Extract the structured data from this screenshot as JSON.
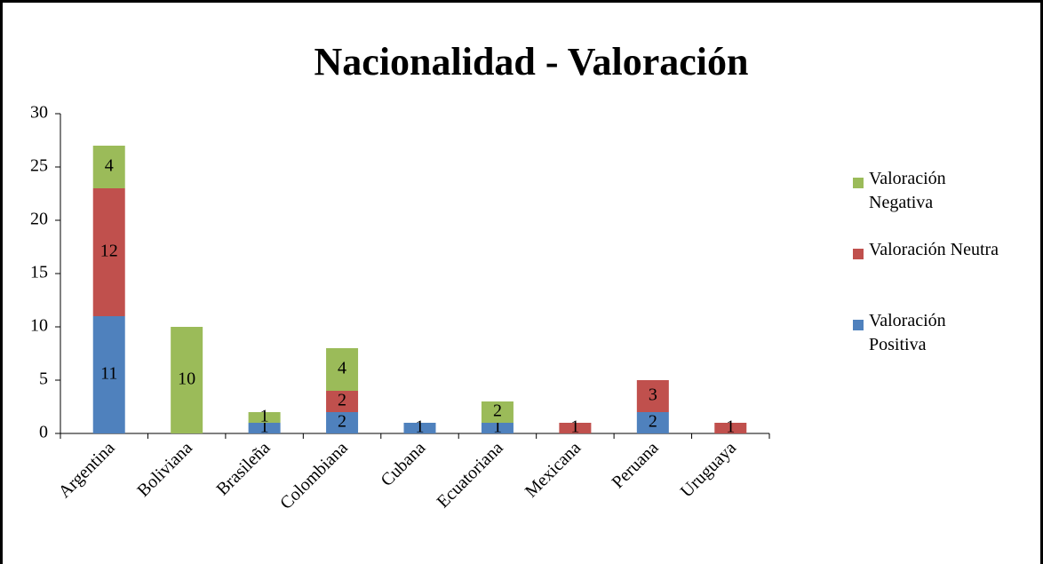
{
  "chart_data": {
    "type": "stacked_bar",
    "title": "Nacionalidad - Valoración",
    "categories": [
      "Argentina",
      "Boliviana",
      "Brasileña",
      "Colombiana",
      "Cubana",
      "Ecuatoriana",
      "Mexicana",
      "Peruana",
      "Uruguaya"
    ],
    "series": [
      {
        "name": "Valoración Positiva",
        "color": "#4f81bd",
        "values": [
          11,
          0,
          1,
          2,
          1,
          1,
          0,
          2,
          0
        ]
      },
      {
        "name": "Valoración Neutra",
        "color": "#c0504d",
        "values": [
          12,
          0,
          0,
          2,
          0,
          0,
          1,
          3,
          1
        ]
      },
      {
        "name": "Valoración Negativa",
        "color": "#9bbb59",
        "values": [
          4,
          10,
          1,
          4,
          0,
          2,
          0,
          0,
          0
        ]
      }
    ],
    "ylim": [
      0,
      30
    ],
    "yticks": [
      0,
      5,
      10,
      15,
      20,
      25,
      30
    ],
    "grid": false,
    "legend": "right"
  }
}
